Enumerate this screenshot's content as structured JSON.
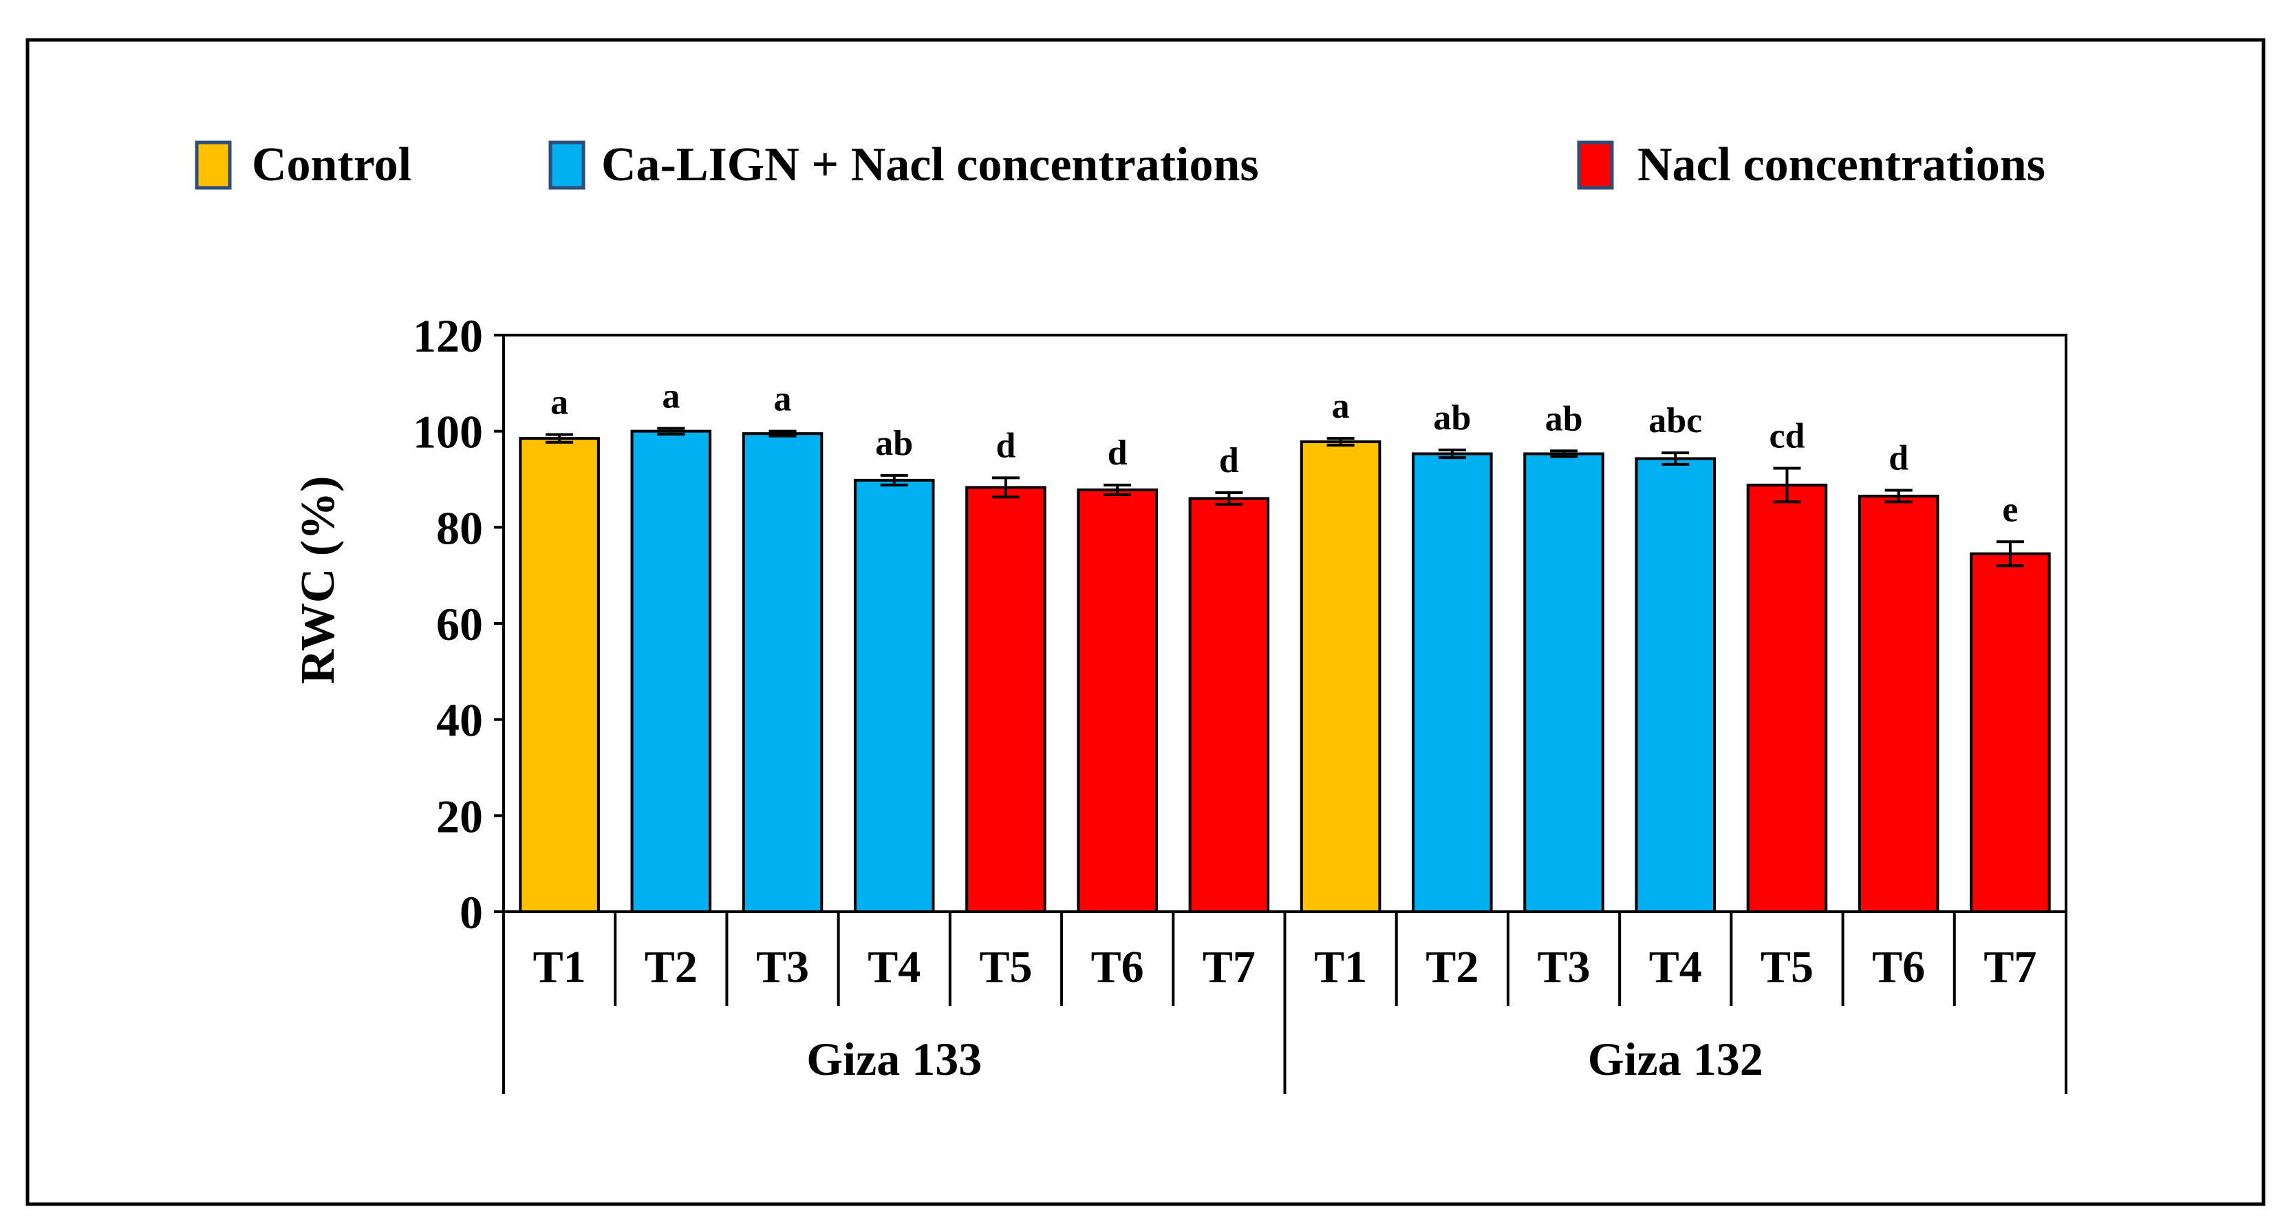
{
  "chart_data": {
    "type": "bar",
    "title": "",
    "xlabel": "",
    "ylabel": "RWC (%)",
    "ylim": [
      0,
      120
    ],
    "yticks": [
      0,
      20,
      40,
      60,
      80,
      100,
      120
    ],
    "legend": [
      {
        "key": "control",
        "label": "Control",
        "color": "#FFC000"
      },
      {
        "key": "calign",
        "label": "Ca-LIGN + Nacl concentrations",
        "color": "#00B0F0"
      },
      {
        "key": "nacl",
        "label": "Nacl concentrations",
        "color": "#FF0000"
      }
    ],
    "groups": [
      {
        "name": "Giza 133",
        "bars": [
          {
            "label": "T1",
            "value": 98.5,
            "error": 0.8,
            "letter": "a",
            "type": "control"
          },
          {
            "label": "T2",
            "value": 100.0,
            "error": 0.6,
            "letter": "a",
            "type": "calign"
          },
          {
            "label": "T3",
            "value": 99.5,
            "error": 0.5,
            "letter": "a",
            "type": "calign"
          },
          {
            "label": "T4",
            "value": 89.8,
            "error": 1.0,
            "letter": "ab",
            "type": "calign"
          },
          {
            "label": "T5",
            "value": 88.3,
            "error": 2.0,
            "letter": "d",
            "type": "nacl"
          },
          {
            "label": "T6",
            "value": 87.8,
            "error": 1.0,
            "letter": "d",
            "type": "nacl"
          },
          {
            "label": "T7",
            "value": 86.0,
            "error": 1.2,
            "letter": "d",
            "type": "nacl"
          }
        ]
      },
      {
        "name": "Giza 132",
        "bars": [
          {
            "label": "T1",
            "value": 97.8,
            "error": 0.7,
            "letter": "a",
            "type": "control"
          },
          {
            "label": "T2",
            "value": 95.3,
            "error": 0.8,
            "letter": "ab",
            "type": "calign"
          },
          {
            "label": "T3",
            "value": 95.3,
            "error": 0.6,
            "letter": "ab",
            "type": "calign"
          },
          {
            "label": "T4",
            "value": 94.3,
            "error": 1.2,
            "letter": "abc",
            "type": "calign"
          },
          {
            "label": "T5",
            "value": 88.8,
            "error": 3.5,
            "letter": "cd",
            "type": "nacl"
          },
          {
            "label": "T6",
            "value": 86.5,
            "error": 1.2,
            "letter": "d",
            "type": "nacl"
          },
          {
            "label": "T7",
            "value": 74.5,
            "error": 2.5,
            "letter": "e",
            "type": "nacl"
          }
        ]
      }
    ]
  }
}
